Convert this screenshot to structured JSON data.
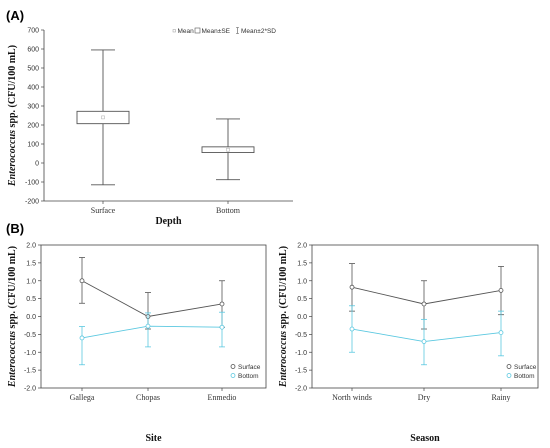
{
  "colors": {
    "surface": "#555555",
    "bottom": "#5bc8e0",
    "axis": "#444444"
  },
  "chart_data": [
    {
      "panel": "(A)",
      "type": "box",
      "xlabel": "Depth",
      "ylabel_italic": "Enterococcus",
      "ylabel_rest": " spp. (CFU/100 mL)",
      "ylim": [
        -200,
        700
      ],
      "yticks": [
        -200,
        -100,
        0,
        100,
        200,
        300,
        400,
        500,
        600,
        700
      ],
      "legend": {
        "mean": "Mean",
        "se": "Mean±SE",
        "sd": "Mean±2*SD"
      },
      "categories": [
        "Surface",
        "Bottom"
      ],
      "boxes": [
        {
          "mean": 240,
          "se_low": 207,
          "se_high": 272,
          "sd_low": -115,
          "sd_high": 595
        },
        {
          "mean": 70,
          "se_low": 55,
          "se_high": 85,
          "sd_low": -88,
          "sd_high": 232
        }
      ]
    },
    {
      "panel": "(B)",
      "type": "line",
      "xlabel": "Site",
      "ylabel_italic": "Enterococcus",
      "ylabel_rest": " spp. (CFU/100 mL)",
      "ylim": [
        -2.0,
        2.0
      ],
      "yticks": [
        "-2.0",
        "-1.5",
        "-1.0",
        "-0.5",
        "0.0",
        "0.5",
        "1.0",
        "1.5",
        "2.0"
      ],
      "categories": [
        "Gallega",
        "Chopas",
        "Enmedio"
      ],
      "series": [
        {
          "name": "Surface",
          "values": [
            1.0,
            0.0,
            0.35
          ],
          "err_low": [
            0.37,
            -0.35,
            -0.3
          ],
          "err_high": [
            1.65,
            0.67,
            1.0
          ]
        },
        {
          "name": "Bottom",
          "values": [
            -0.6,
            -0.27,
            -0.3
          ],
          "err_low": [
            -1.35,
            -0.85,
            -0.85
          ],
          "err_high": [
            -0.28,
            0.1,
            0.12
          ]
        }
      ]
    },
    {
      "panel": "",
      "type": "line",
      "xlabel": "Season",
      "ylabel_italic": "Enterococcus",
      "ylabel_rest": " spp. (CFU/100 mL)",
      "ylim": [
        -2.0,
        2.0
      ],
      "yticks": [
        "-2.0",
        "-1.5",
        "-1.0",
        "-0.5",
        "0.0",
        "0.5",
        "1.0",
        "1.5",
        "2.0"
      ],
      "categories": [
        "North winds",
        "Dry",
        "Rainy"
      ],
      "series": [
        {
          "name": "Surface",
          "values": [
            0.82,
            0.35,
            0.73
          ],
          "err_low": [
            0.15,
            -0.35,
            0.05
          ],
          "err_high": [
            1.48,
            1.0,
            1.4
          ]
        },
        {
          "name": "Bottom",
          "values": [
            -0.35,
            -0.7,
            -0.45
          ],
          "err_low": [
            -1.0,
            -1.35,
            -1.1
          ],
          "err_high": [
            0.3,
            -0.08,
            0.15
          ]
        }
      ]
    }
  ]
}
